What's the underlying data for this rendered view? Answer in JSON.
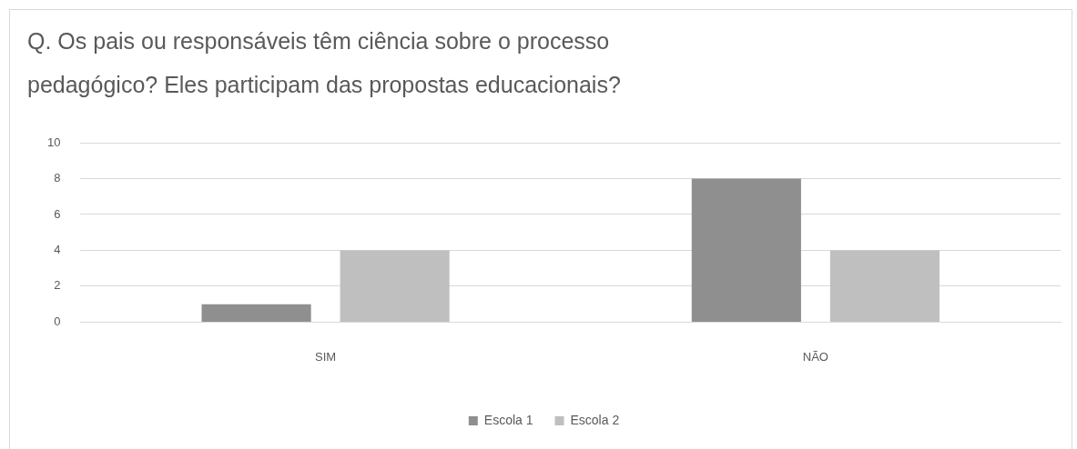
{
  "chart_data": {
    "type": "bar",
    "title": "Q. Os pais ou responsáveis têm ciência sobre o processo pedagógico? Eles participam das propostas educacionais?",
    "categories": [
      "SIM",
      "NÃO"
    ],
    "series": [
      {
        "name": "Escola 1",
        "color": "#8f8f8f",
        "values": [
          1,
          8
        ]
      },
      {
        "name": "Escola 2",
        "color": "#bfbfbf",
        "values": [
          4,
          4
        ]
      }
    ],
    "ylim": [
      0,
      10
    ],
    "yticks": [
      0,
      2,
      4,
      6,
      8,
      10
    ],
    "grid": "y",
    "legend": "bottom"
  }
}
